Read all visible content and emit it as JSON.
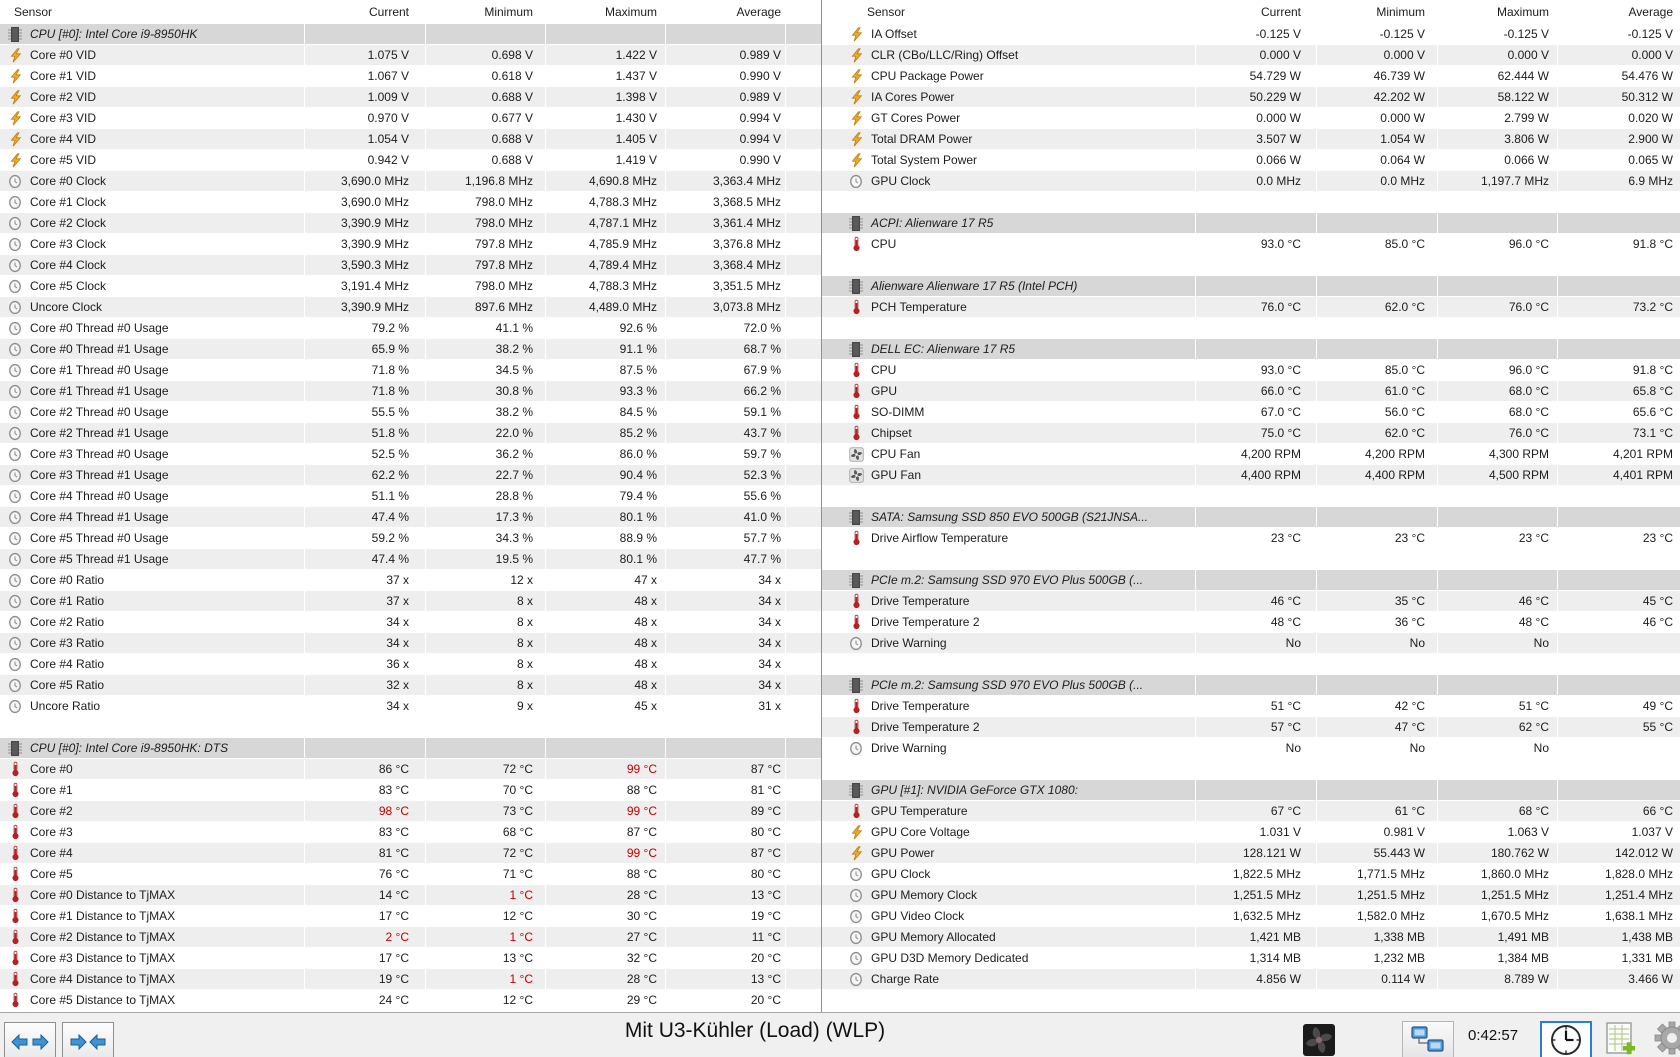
{
  "columns": {
    "sensor": "Sensor",
    "current": "Current",
    "minimum": "Minimum",
    "maximum": "Maximum",
    "average": "Average"
  },
  "colors": {
    "stripe": "#eeeeee",
    "section_bg": "#d7d7d7",
    "alert_red": "#c00000",
    "selected_border": "#2a7fd4"
  },
  "left_panel": {
    "rows": [
      {
        "t": "section",
        "icon": "chip",
        "label": "CPU [#0]: Intel Core i9-8950HK"
      },
      {
        "t": "data",
        "icon": "bolt",
        "label": "Core #0 VID",
        "values": [
          "1.075 V",
          "0.698 V",
          "1.422 V",
          "0.989 V"
        ]
      },
      {
        "t": "data",
        "icon": "bolt",
        "label": "Core #1 VID",
        "values": [
          "1.067 V",
          "0.618 V",
          "1.437 V",
          "0.990 V"
        ]
      },
      {
        "t": "data",
        "icon": "bolt",
        "label": "Core #2 VID",
        "values": [
          "1.009 V",
          "0.688 V",
          "1.398 V",
          "0.989 V"
        ]
      },
      {
        "t": "data",
        "icon": "bolt",
        "label": "Core #3 VID",
        "values": [
          "0.970 V",
          "0.677 V",
          "1.430 V",
          "0.994 V"
        ]
      },
      {
        "t": "data",
        "icon": "bolt",
        "label": "Core #4 VID",
        "values": [
          "1.054 V",
          "0.688 V",
          "1.405 V",
          "0.994 V"
        ]
      },
      {
        "t": "data",
        "icon": "bolt",
        "label": "Core #5 VID",
        "values": [
          "0.942 V",
          "0.688 V",
          "1.419 V",
          "0.990 V"
        ]
      },
      {
        "t": "data",
        "icon": "clock",
        "label": "Core #0 Clock",
        "values": [
          "3,690.0 MHz",
          "1,196.8 MHz",
          "4,690.8 MHz",
          "3,363.4 MHz"
        ]
      },
      {
        "t": "data",
        "icon": "clock",
        "label": "Core #1 Clock",
        "values": [
          "3,690.0 MHz",
          "798.0 MHz",
          "4,788.3 MHz",
          "3,368.5 MHz"
        ]
      },
      {
        "t": "data",
        "icon": "clock",
        "label": "Core #2 Clock",
        "values": [
          "3,390.9 MHz",
          "798.0 MHz",
          "4,787.1 MHz",
          "3,361.4 MHz"
        ]
      },
      {
        "t": "data",
        "icon": "clock",
        "label": "Core #3 Clock",
        "values": [
          "3,390.9 MHz",
          "797.8 MHz",
          "4,785.9 MHz",
          "3,376.8 MHz"
        ]
      },
      {
        "t": "data",
        "icon": "clock",
        "label": "Core #4 Clock",
        "values": [
          "3,590.3 MHz",
          "797.8 MHz",
          "4,789.4 MHz",
          "3,368.4 MHz"
        ]
      },
      {
        "t": "data",
        "icon": "clock",
        "label": "Core #5 Clock",
        "values": [
          "3,191.4 MHz",
          "798.0 MHz",
          "4,788.3 MHz",
          "3,351.5 MHz"
        ]
      },
      {
        "t": "data",
        "icon": "clock",
        "label": "Uncore Clock",
        "values": [
          "3,390.9 MHz",
          "897.6 MHz",
          "4,489.0 MHz",
          "3,073.8 MHz"
        ]
      },
      {
        "t": "data",
        "icon": "clock",
        "label": "Core #0 Thread #0 Usage",
        "values": [
          "79.2 %",
          "41.1 %",
          "92.6 %",
          "72.0 %"
        ]
      },
      {
        "t": "data",
        "icon": "clock",
        "label": "Core #0 Thread #1 Usage",
        "values": [
          "65.9 %",
          "38.2 %",
          "91.1 %",
          "68.7 %"
        ]
      },
      {
        "t": "data",
        "icon": "clock",
        "label": "Core #1 Thread #0 Usage",
        "values": [
          "71.8 %",
          "34.5 %",
          "87.5 %",
          "67.9 %"
        ]
      },
      {
        "t": "data",
        "icon": "clock",
        "label": "Core #1 Thread #1 Usage",
        "values": [
          "71.8 %",
          "30.8 %",
          "93.3 %",
          "66.2 %"
        ]
      },
      {
        "t": "data",
        "icon": "clock",
        "label": "Core #2 Thread #0 Usage",
        "values": [
          "55.5 %",
          "38.2 %",
          "84.5 %",
          "59.1 %"
        ]
      },
      {
        "t": "data",
        "icon": "clock",
        "label": "Core #2 Thread #1 Usage",
        "values": [
          "51.8 %",
          "22.0 %",
          "85.2 %",
          "43.7 %"
        ]
      },
      {
        "t": "data",
        "icon": "clock",
        "label": "Core #3 Thread #0 Usage",
        "values": [
          "52.5 %",
          "36.2 %",
          "86.0 %",
          "59.7 %"
        ]
      },
      {
        "t": "data",
        "icon": "clock",
        "label": "Core #3 Thread #1 Usage",
        "values": [
          "62.2 %",
          "22.7 %",
          "90.4 %",
          "52.3 %"
        ]
      },
      {
        "t": "data",
        "icon": "clock",
        "label": "Core #4 Thread #0 Usage",
        "values": [
          "51.1 %",
          "28.8 %",
          "79.4 %",
          "55.6 %"
        ]
      },
      {
        "t": "data",
        "icon": "clock",
        "label": "Core #4 Thread #1 Usage",
        "values": [
          "47.4 %",
          "17.3 %",
          "80.1 %",
          "41.0 %"
        ]
      },
      {
        "t": "data",
        "icon": "clock",
        "label": "Core #5 Thread #0 Usage",
        "values": [
          "59.2 %",
          "34.3 %",
          "88.9 %",
          "57.7 %"
        ]
      },
      {
        "t": "data",
        "icon": "clock",
        "label": "Core #5 Thread #1 Usage",
        "values": [
          "47.4 %",
          "19.5 %",
          "80.1 %",
          "47.7 %"
        ]
      },
      {
        "t": "data",
        "icon": "clock",
        "label": "Core #0 Ratio",
        "values": [
          "37 x",
          "12 x",
          "47 x",
          "34 x"
        ]
      },
      {
        "t": "data",
        "icon": "clock",
        "label": "Core #1 Ratio",
        "values": [
          "37 x",
          "8 x",
          "48 x",
          "34 x"
        ]
      },
      {
        "t": "data",
        "icon": "clock",
        "label": "Core #2 Ratio",
        "values": [
          "34 x",
          "8 x",
          "48 x",
          "34 x"
        ]
      },
      {
        "t": "data",
        "icon": "clock",
        "label": "Core #3 Ratio",
        "values": [
          "34 x",
          "8 x",
          "48 x",
          "34 x"
        ]
      },
      {
        "t": "data",
        "icon": "clock",
        "label": "Core #4 Ratio",
        "values": [
          "36 x",
          "8 x",
          "48 x",
          "34 x"
        ]
      },
      {
        "t": "data",
        "icon": "clock",
        "label": "Core #5 Ratio",
        "values": [
          "32 x",
          "8 x",
          "48 x",
          "34 x"
        ]
      },
      {
        "t": "data",
        "icon": "clock",
        "label": "Uncore Ratio",
        "values": [
          "34 x",
          "9 x",
          "45 x",
          "31 x"
        ]
      },
      {
        "t": "blank"
      },
      {
        "t": "section",
        "icon": "chip",
        "label": "CPU [#0]: Intel Core i9-8950HK: DTS"
      },
      {
        "t": "data",
        "icon": "temp",
        "label": "Core #0",
        "values": [
          "86 °C",
          "72 °C",
          "99 °C",
          "87 °C"
        ],
        "red": [
          2
        ]
      },
      {
        "t": "data",
        "icon": "temp",
        "label": "Core #1",
        "values": [
          "83 °C",
          "70 °C",
          "88 °C",
          "81 °C"
        ]
      },
      {
        "t": "data",
        "icon": "temp",
        "label": "Core #2",
        "values": [
          "98 °C",
          "73 °C",
          "99 °C",
          "89 °C"
        ],
        "red": [
          0,
          2
        ]
      },
      {
        "t": "data",
        "icon": "temp",
        "label": "Core #3",
        "values": [
          "83 °C",
          "68 °C",
          "87 °C",
          "80 °C"
        ]
      },
      {
        "t": "data",
        "icon": "temp",
        "label": "Core #4",
        "values": [
          "81 °C",
          "72 °C",
          "99 °C",
          "87 °C"
        ],
        "red": [
          2
        ]
      },
      {
        "t": "data",
        "icon": "temp",
        "label": "Core #5",
        "values": [
          "76 °C",
          "71 °C",
          "88 °C",
          "80 °C"
        ]
      },
      {
        "t": "data",
        "icon": "temp",
        "label": "Core #0 Distance to TjMAX",
        "values": [
          "14 °C",
          "1 °C",
          "28 °C",
          "13 °C"
        ],
        "red": [
          1
        ]
      },
      {
        "t": "data",
        "icon": "temp",
        "label": "Core #1 Distance to TjMAX",
        "values": [
          "17 °C",
          "12 °C",
          "30 °C",
          "19 °C"
        ]
      },
      {
        "t": "data",
        "icon": "temp",
        "label": "Core #2 Distance to TjMAX",
        "values": [
          "2 °C",
          "1 °C",
          "27 °C",
          "11 °C"
        ],
        "red": [
          0,
          1
        ]
      },
      {
        "t": "data",
        "icon": "temp",
        "label": "Core #3 Distance to TjMAX",
        "values": [
          "17 °C",
          "13 °C",
          "32 °C",
          "20 °C"
        ]
      },
      {
        "t": "data",
        "icon": "temp",
        "label": "Core #4 Distance to TjMAX",
        "values": [
          "19 °C",
          "1 °C",
          "28 °C",
          "13 °C"
        ],
        "red": [
          1
        ]
      },
      {
        "t": "data",
        "icon": "temp",
        "label": "Core #5 Distance to TjMAX",
        "values": [
          "24 °C",
          "12 °C",
          "29 °C",
          "20 °C"
        ]
      }
    ]
  },
  "right_panel": {
    "rows": [
      {
        "t": "data",
        "icon": "bolt",
        "label": "IA Offset",
        "values": [
          "-0.125 V",
          "-0.125 V",
          "-0.125 V",
          "-0.125 V"
        ]
      },
      {
        "t": "data",
        "icon": "bolt",
        "label": "CLR (CBo/LLC/Ring) Offset",
        "values": [
          "0.000 V",
          "0.000 V",
          "0.000 V",
          "0.000 V"
        ]
      },
      {
        "t": "data",
        "icon": "bolt",
        "label": "CPU Package Power",
        "values": [
          "54.729 W",
          "46.739 W",
          "62.444 W",
          "54.476 W"
        ]
      },
      {
        "t": "data",
        "icon": "bolt",
        "label": "IA Cores Power",
        "values": [
          "50.229 W",
          "42.202 W",
          "58.122 W",
          "50.312 W"
        ]
      },
      {
        "t": "data",
        "icon": "bolt",
        "label": "GT Cores Power",
        "values": [
          "0.000 W",
          "0.000 W",
          "2.799 W",
          "0.020 W"
        ]
      },
      {
        "t": "data",
        "icon": "bolt",
        "label": "Total DRAM Power",
        "values": [
          "3.507 W",
          "1.054 W",
          "3.806 W",
          "2.900 W"
        ]
      },
      {
        "t": "data",
        "icon": "bolt",
        "label": "Total System Power",
        "values": [
          "0.066 W",
          "0.064 W",
          "0.066 W",
          "0.065 W"
        ]
      },
      {
        "t": "data",
        "icon": "clock",
        "label": "GPU Clock",
        "values": [
          "0.0 MHz",
          "0.0 MHz",
          "1,197.7 MHz",
          "6.9 MHz"
        ]
      },
      {
        "t": "blank"
      },
      {
        "t": "section",
        "icon": "chip",
        "label": "ACPI: Alienware 17 R5"
      },
      {
        "t": "data",
        "icon": "temp",
        "label": "CPU",
        "values": [
          "93.0 °C",
          "85.0 °C",
          "96.0 °C",
          "91.8 °C"
        ]
      },
      {
        "t": "blank"
      },
      {
        "t": "section",
        "icon": "chip",
        "label": "Alienware Alienware 17 R5 (Intel PCH)"
      },
      {
        "t": "data",
        "icon": "temp",
        "label": "PCH Temperature",
        "values": [
          "76.0 °C",
          "62.0 °C",
          "76.0 °C",
          "73.2 °C"
        ]
      },
      {
        "t": "blank"
      },
      {
        "t": "section",
        "icon": "chip",
        "label": "DELL EC: Alienware 17 R5"
      },
      {
        "t": "data",
        "icon": "temp",
        "label": "CPU",
        "values": [
          "93.0 °C",
          "85.0 °C",
          "96.0 °C",
          "91.8 °C"
        ]
      },
      {
        "t": "data",
        "icon": "temp",
        "label": "GPU",
        "values": [
          "66.0 °C",
          "61.0 °C",
          "68.0 °C",
          "65.8 °C"
        ]
      },
      {
        "t": "data",
        "icon": "temp",
        "label": "SO-DIMM",
        "values": [
          "67.0 °C",
          "56.0 °C",
          "68.0 °C",
          "65.6 °C"
        ]
      },
      {
        "t": "data",
        "icon": "temp",
        "label": "Chipset",
        "values": [
          "75.0 °C",
          "62.0 °C",
          "76.0 °C",
          "73.1 °C"
        ]
      },
      {
        "t": "data",
        "icon": "fan",
        "label": "CPU Fan",
        "values": [
          "4,200 RPM",
          "4,200 RPM",
          "4,300 RPM",
          "4,201 RPM"
        ]
      },
      {
        "t": "data",
        "icon": "fan",
        "label": "GPU Fan",
        "values": [
          "4,400 RPM",
          "4,400 RPM",
          "4,500 RPM",
          "4,401 RPM"
        ]
      },
      {
        "t": "blank"
      },
      {
        "t": "section",
        "icon": "chip",
        "label": "SATA: Samsung SSD 850 EVO 500GB (S21JNSA..."
      },
      {
        "t": "data",
        "icon": "temp",
        "label": "Drive Airflow Temperature",
        "values": [
          "23 °C",
          "23 °C",
          "23 °C",
          "23 °C"
        ]
      },
      {
        "t": "blank"
      },
      {
        "t": "section",
        "icon": "chip",
        "label": "PCIe m.2: Samsung SSD 970 EVO Plus 500GB (..."
      },
      {
        "t": "data",
        "icon": "temp",
        "label": "Drive Temperature",
        "values": [
          "46 °C",
          "35 °C",
          "46 °C",
          "45 °C"
        ]
      },
      {
        "t": "data",
        "icon": "temp",
        "label": "Drive Temperature 2",
        "values": [
          "48 °C",
          "36 °C",
          "48 °C",
          "46 °C"
        ]
      },
      {
        "t": "data",
        "icon": "clock",
        "label": "Drive Warning",
        "values": [
          "No",
          "No",
          "No",
          ""
        ]
      },
      {
        "t": "blank"
      },
      {
        "t": "section",
        "icon": "chip",
        "label": "PCIe m.2: Samsung SSD 970 EVO Plus 500GB (..."
      },
      {
        "t": "data",
        "icon": "temp",
        "label": "Drive Temperature",
        "values": [
          "51 °C",
          "42 °C",
          "51 °C",
          "49 °C"
        ]
      },
      {
        "t": "data",
        "icon": "temp",
        "label": "Drive Temperature 2",
        "values": [
          "57 °C",
          "47 °C",
          "62 °C",
          "55 °C"
        ]
      },
      {
        "t": "data",
        "icon": "clock",
        "label": "Drive Warning",
        "values": [
          "No",
          "No",
          "No",
          ""
        ]
      },
      {
        "t": "blank"
      },
      {
        "t": "section",
        "icon": "chip",
        "label": "GPU [#1]: NVIDIA GeForce GTX 1080:"
      },
      {
        "t": "data",
        "icon": "temp",
        "label": "GPU Temperature",
        "values": [
          "67 °C",
          "61 °C",
          "68 °C",
          "66 °C"
        ]
      },
      {
        "t": "data",
        "icon": "bolt",
        "label": "GPU Core Voltage",
        "values": [
          "1.031 V",
          "0.981 V",
          "1.063 V",
          "1.037 V"
        ]
      },
      {
        "t": "data",
        "icon": "bolt",
        "label": "GPU Power",
        "values": [
          "128.121 W",
          "55.443 W",
          "180.762 W",
          "142.012 W"
        ]
      },
      {
        "t": "data",
        "icon": "clock",
        "label": "GPU Clock",
        "values": [
          "1,822.5 MHz",
          "1,771.5 MHz",
          "1,860.0 MHz",
          "1,828.0 MHz"
        ]
      },
      {
        "t": "data",
        "icon": "clock",
        "label": "GPU Memory Clock",
        "values": [
          "1,251.5 MHz",
          "1,251.5 MHz",
          "1,251.5 MHz",
          "1,251.4 MHz"
        ]
      },
      {
        "t": "data",
        "icon": "clock",
        "label": "GPU Video Clock",
        "values": [
          "1,632.5 MHz",
          "1,582.0 MHz",
          "1,670.5 MHz",
          "1,638.1 MHz"
        ]
      },
      {
        "t": "data",
        "icon": "clock",
        "label": "GPU Memory Allocated",
        "values": [
          "1,421 MB",
          "1,338 MB",
          "1,491 MB",
          "1,438 MB"
        ]
      },
      {
        "t": "data",
        "icon": "clock",
        "label": "GPU D3D Memory Dedicated",
        "values": [
          "1,314 MB",
          "1,232 MB",
          "1,384 MB",
          "1,331 MB"
        ]
      },
      {
        "t": "data",
        "icon": "clock",
        "label": "Charge Rate",
        "values": [
          "4.856 W",
          "0.114 W",
          "8.789 W",
          "3.466 W"
        ]
      },
      {
        "t": "blank"
      }
    ]
  },
  "footer": {
    "title": "Mit U3-Kühler (Load) (WLP)",
    "time": "0:42:57"
  }
}
